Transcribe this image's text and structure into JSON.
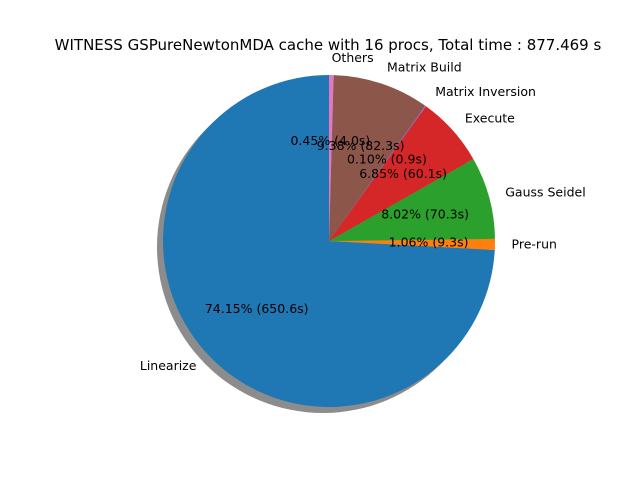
{
  "chart_data": {
    "type": "pie",
    "title": "WITNESS GSPureNewtonMDA cache with 16 procs, Total time : 877.469 s",
    "slices": [
      {
        "label": "Linearize",
        "percent": 74.15,
        "seconds": 650.6,
        "pct_text": "74.15%  (650.6s)",
        "color": "#1f77b4"
      },
      {
        "label": "Pre-run",
        "percent": 1.06,
        "seconds": 9.3,
        "pct_text": "1.06%  (9.3s)",
        "color": "#ff7f0e"
      },
      {
        "label": "Gauss Seidel",
        "percent": 8.02,
        "seconds": 70.3,
        "pct_text": "8.02%  (70.3s)",
        "color": "#2ca02c"
      },
      {
        "label": "Execute",
        "percent": 6.85,
        "seconds": 60.1,
        "pct_text": "6.85%  (60.1s)",
        "color": "#d62728"
      },
      {
        "label": "Matrix Inversion",
        "percent": 0.1,
        "seconds": 0.9,
        "pct_text": "0.10%  (0.9s)",
        "color": "#9467bd"
      },
      {
        "label": "Matrix Build",
        "percent": 9.38,
        "seconds": 82.3,
        "pct_text": "9.38%  (82.3s)",
        "color": "#8c564b"
      },
      {
        "label": "Others",
        "percent": 0.45,
        "seconds": 4.0,
        "pct_text": "0.45%  (4.0s)",
        "color": "#e377c2"
      }
    ],
    "start_angle_deg": 90,
    "direction": "counterclockwise",
    "shadow": true
  }
}
